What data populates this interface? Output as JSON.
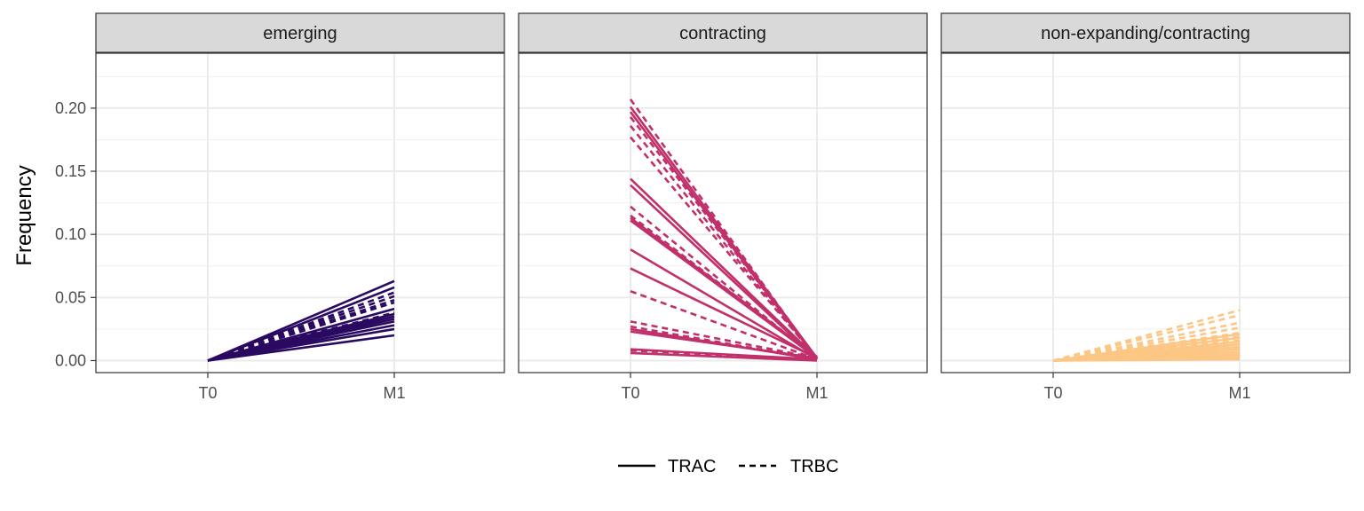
{
  "chart_data": {
    "type": "line",
    "ylabel": "Frequency",
    "xlabel": "",
    "ylim": [
      -0.0095,
      0.2435
    ],
    "y_ticks": [
      "0.00",
      "0.05",
      "0.10",
      "0.15",
      "0.20"
    ],
    "y_tick_values": [
      0,
      0.05,
      0.1,
      0.15,
      0.2
    ],
    "x_categories": [
      "T0",
      "M1"
    ],
    "grid": true,
    "legend": {
      "position": "bottom",
      "entries": [
        {
          "label": "TRAC",
          "linetype": "solid"
        },
        {
          "label": "TRBC",
          "linetype": "dashed"
        }
      ]
    },
    "panels": [
      {
        "strip": "emerging",
        "color": "#2a0a61",
        "series": [
          {
            "chain": "TRAC",
            "values": [
              0,
              0.063
            ]
          },
          {
            "chain": "TRAC",
            "values": [
              0,
              0.058
            ]
          },
          {
            "chain": "TRAC",
            "values": [
              0,
              0.041
            ]
          },
          {
            "chain": "TRAC",
            "values": [
              0,
              0.037
            ]
          },
          {
            "chain": "TRAC",
            "values": [
              0,
              0.035
            ]
          },
          {
            "chain": "TRAC",
            "values": [
              0,
              0.033
            ]
          },
          {
            "chain": "TRAC",
            "values": [
              0,
              0.031
            ]
          },
          {
            "chain": "TRAC",
            "values": [
              0,
              0.028
            ]
          },
          {
            "chain": "TRAC",
            "values": [
              0,
              0.025
            ]
          },
          {
            "chain": "TRAC",
            "values": [
              0,
              0.02
            ]
          },
          {
            "chain": "TRBC",
            "values": [
              0,
              0.054
            ]
          },
          {
            "chain": "TRBC",
            "values": [
              0,
              0.051
            ]
          },
          {
            "chain": "TRBC",
            "values": [
              0,
              0.048
            ]
          },
          {
            "chain": "TRBC",
            "values": [
              0,
              0.046
            ]
          },
          {
            "chain": "TRBC",
            "values": [
              0,
              0.038
            ]
          }
        ]
      },
      {
        "strip": "contracting",
        "color": "#c0306a",
        "series": [
          {
            "chain": "TRAC",
            "values": [
              0.201,
              0.002
            ]
          },
          {
            "chain": "TRAC",
            "values": [
              0.197,
              0.001
            ]
          },
          {
            "chain": "TRAC",
            "values": [
              0.144,
              0.002
            ]
          },
          {
            "chain": "TRAC",
            "values": [
              0.139,
              0.001
            ]
          },
          {
            "chain": "TRAC",
            "values": [
              0.113,
              0.003
            ]
          },
          {
            "chain": "TRAC",
            "values": [
              0.111,
              0.002
            ]
          },
          {
            "chain": "TRAC",
            "values": [
              0.088,
              0.001
            ]
          },
          {
            "chain": "TRAC",
            "values": [
              0.073,
              0.002
            ]
          },
          {
            "chain": "TRAC",
            "values": [
              0.025,
              0.001
            ]
          },
          {
            "chain": "TRAC",
            "values": [
              0.023,
              0.002
            ]
          },
          {
            "chain": "TRAC",
            "values": [
              0.009,
              0.001
            ]
          },
          {
            "chain": "TRAC",
            "values": [
              0.006,
              0.0
            ]
          },
          {
            "chain": "TRBC",
            "values": [
              0.207,
              0.001
            ]
          },
          {
            "chain": "TRBC",
            "values": [
              0.193,
              0.002
            ]
          },
          {
            "chain": "TRBC",
            "values": [
              0.186,
              0.001
            ]
          },
          {
            "chain": "TRBC",
            "values": [
              0.177,
              0.002
            ]
          },
          {
            "chain": "TRBC",
            "values": [
              0.122,
              0.001
            ]
          },
          {
            "chain": "TRBC",
            "values": [
              0.115,
              0.002
            ]
          },
          {
            "chain": "TRBC",
            "values": [
              0.055,
              0.001
            ]
          },
          {
            "chain": "TRBC",
            "values": [
              0.031,
              0.002
            ]
          },
          {
            "chain": "TRBC",
            "values": [
              0.027,
              0.001
            ]
          },
          {
            "chain": "TRBC",
            "values": [
              0.008,
              0.001
            ]
          }
        ]
      },
      {
        "strip": "non-expanding/contracting",
        "color": "#fcc685",
        "series": [
          {
            "chain": "TRBC",
            "values": [
              0,
              0.04
            ]
          },
          {
            "chain": "TRBC",
            "values": [
              0,
              0.036
            ]
          },
          {
            "chain": "TRBC",
            "values": [
              0,
              0.03
            ]
          },
          {
            "chain": "TRBC",
            "values": [
              0,
              0.026
            ]
          },
          {
            "chain": "TRBC",
            "values": [
              0,
              0.022
            ]
          },
          {
            "chain": "TRBC",
            "values": [
              0,
              0.019
            ]
          },
          {
            "chain": "TRBC",
            "values": [
              0,
              0.016
            ]
          },
          {
            "chain": "TRBC",
            "values": [
              0,
              0.013
            ]
          },
          {
            "chain": "TRBC",
            "values": [
              0,
              0.01
            ]
          },
          {
            "chain": "TRAC",
            "values": [
              0,
              0.021
            ]
          },
          {
            "chain": "TRAC",
            "values": [
              0,
              0.018
            ]
          },
          {
            "chain": "TRAC",
            "values": [
              0,
              0.015
            ]
          },
          {
            "chain": "TRAC",
            "values": [
              0,
              0.013
            ]
          },
          {
            "chain": "TRAC",
            "values": [
              0,
              0.011
            ]
          },
          {
            "chain": "TRAC",
            "values": [
              0,
              0.009
            ]
          },
          {
            "chain": "TRAC",
            "values": [
              0,
              0.007
            ]
          },
          {
            "chain": "TRAC",
            "values": [
              0,
              0.006
            ]
          },
          {
            "chain": "TRAC",
            "values": [
              0,
              0.005
            ]
          },
          {
            "chain": "TRAC",
            "values": [
              0,
              0.004
            ]
          },
          {
            "chain": "TRAC",
            "values": [
              0,
              0.003
            ]
          },
          {
            "chain": "TRAC",
            "values": [
              0,
              0.002
            ]
          },
          {
            "chain": "TRAC",
            "values": [
              0,
              0.001
            ]
          }
        ]
      }
    ]
  }
}
